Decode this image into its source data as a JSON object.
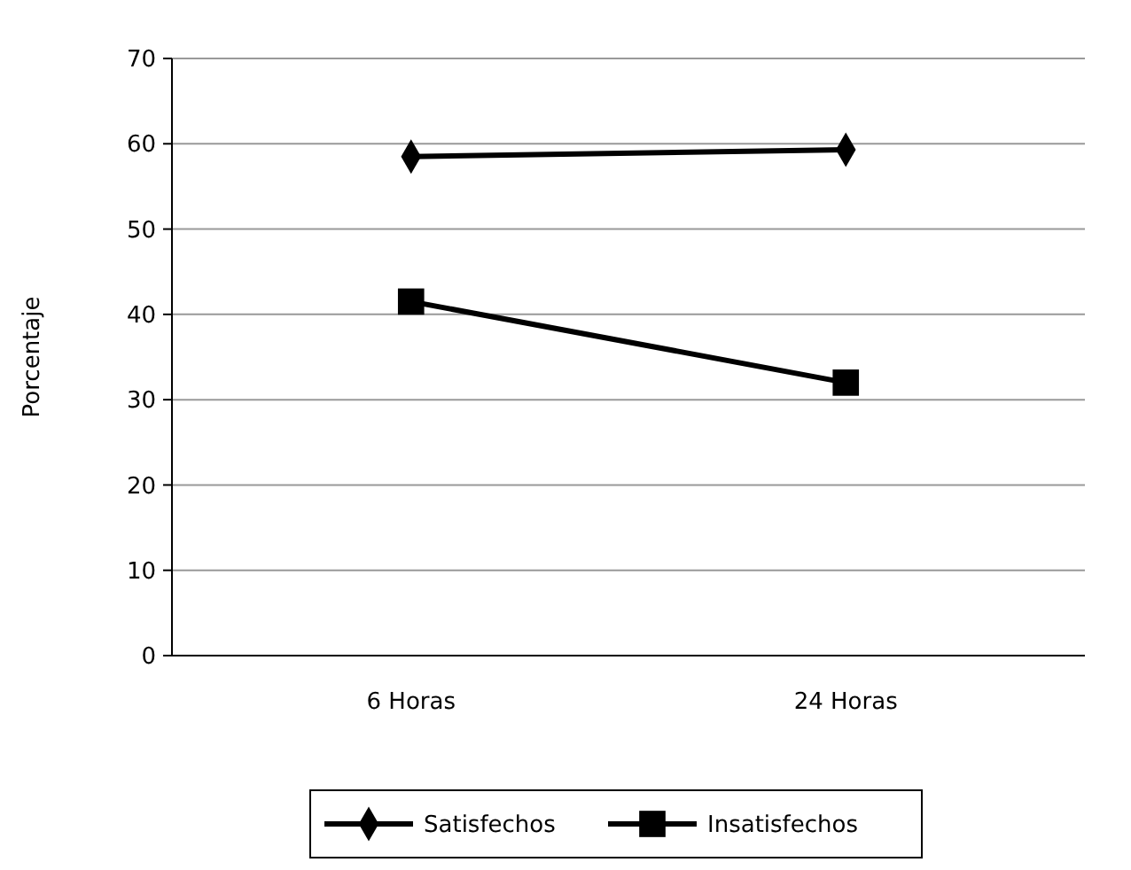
{
  "chart_data": {
    "type": "line",
    "ylabel": "Porcentaje",
    "categories": [
      "6 Horas",
      "24 Horas"
    ],
    "series": [
      {
        "name": "Satisfechos",
        "color": "#000000",
        "values": [
          58.5,
          59.3
        ],
        "marker": "diamond"
      },
      {
        "name": "Insatisfechos",
        "color": "#000000",
        "values": [
          41.5,
          32
        ],
        "marker": "square"
      }
    ],
    "ylim": [
      0,
      70
    ],
    "yticks": [
      0,
      10,
      20,
      30,
      40,
      50,
      60,
      70
    ],
    "grid": "y",
    "legend": "bottom",
    "line_style": "solid"
  }
}
